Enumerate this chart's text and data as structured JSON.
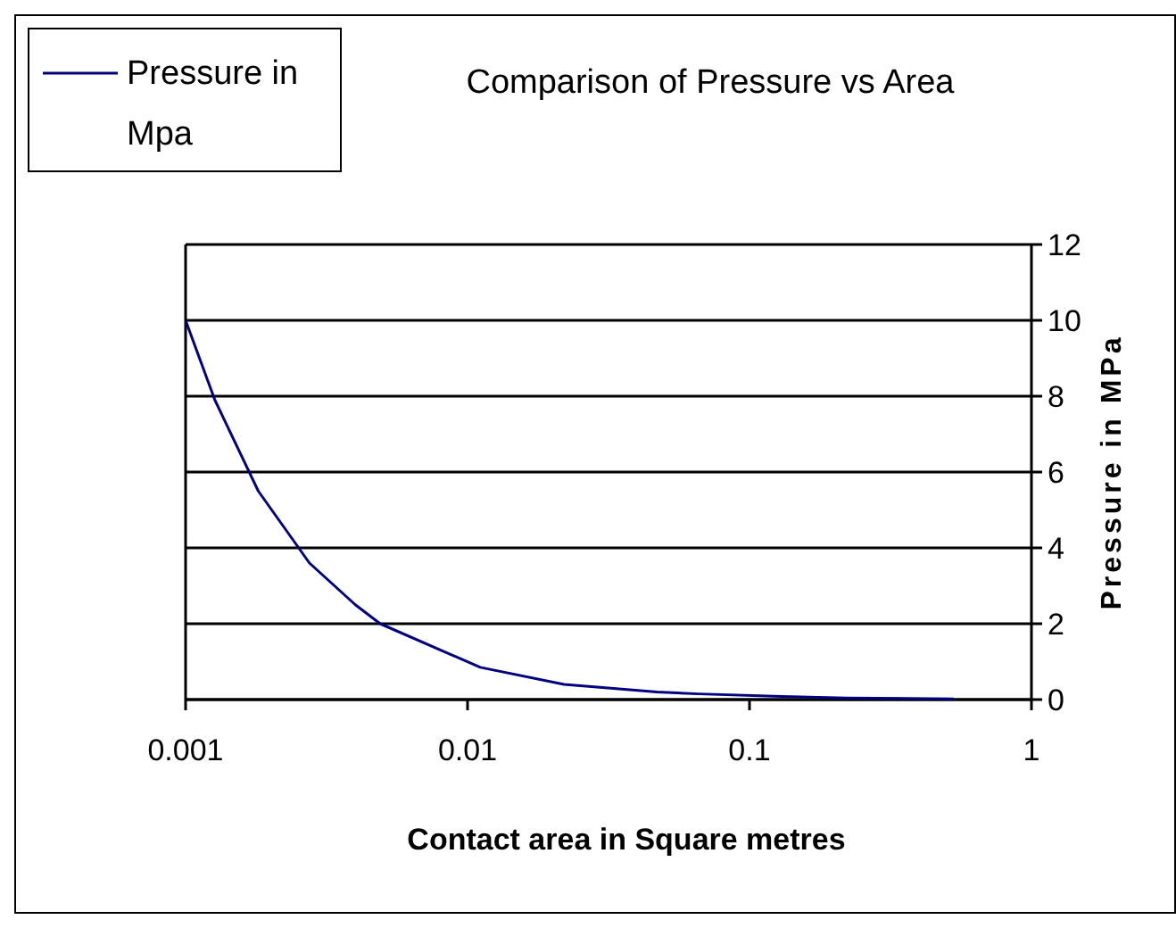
{
  "chart_data": {
    "type": "line",
    "title": "Comparison of Pressure vs Area",
    "xlabel": "Contact area in Square metres",
    "ylabel": "Pressure in MPa",
    "log": "x",
    "xlim": [
      0.001,
      1
    ],
    "xticks": [
      0.001,
      0.01,
      0.1,
      1
    ],
    "ylim": [
      0,
      12
    ],
    "yticks": [
      0,
      2,
      4,
      6,
      8,
      10,
      12
    ],
    "grid": "y",
    "legend": "top left",
    "marker": "none",
    "line_style": "solid",
    "series": [
      {
        "name": "Pressure in Mpa",
        "color": "#000080",
        "x": [
          0.001,
          0.00127,
          0.00181,
          0.00275,
          0.004,
          0.0049,
          0.0111,
          0.022,
          0.047,
          0.066,
          0.13,
          0.22,
          0.53
        ],
        "values": [
          10,
          7.9,
          5.5,
          3.6,
          2.5,
          2,
          0.85,
          0.4,
          0.2,
          0.15,
          0.08,
          0.04,
          0.02
        ]
      }
    ]
  }
}
